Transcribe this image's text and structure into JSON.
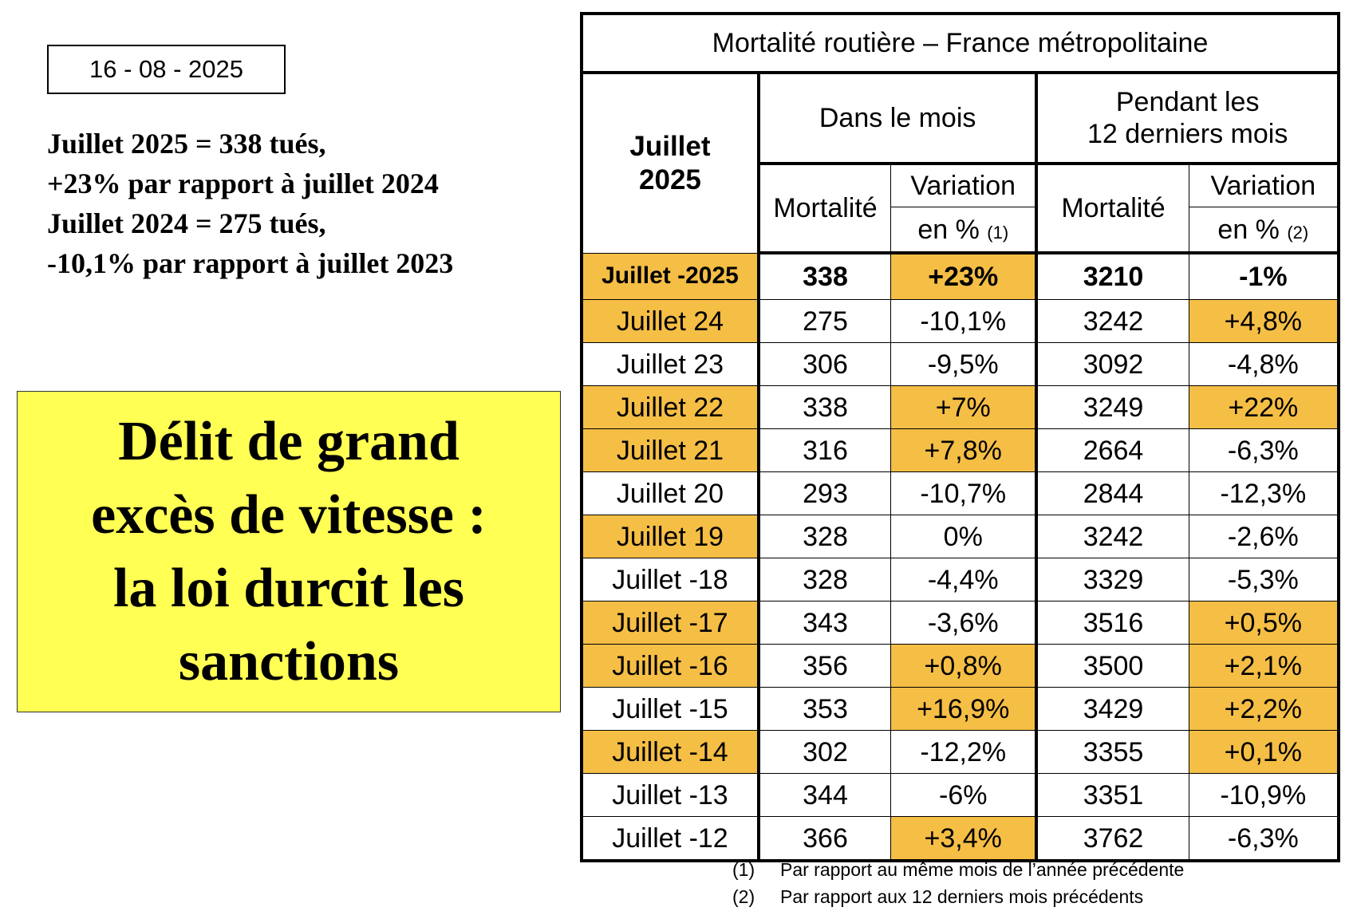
{
  "date": "16 - 08 - 2025",
  "summary": [
    "Juillet 2025 = 338 tués,",
    "+23% par rapport à juillet 2024",
    "Juillet 2024 = 275 tués,",
    "-10,1% par rapport à juillet 2023"
  ],
  "headline": [
    "Délit de grand",
    "excès de vitesse :",
    "la loi durcit les",
    "sanctions"
  ],
  "table": {
    "title": "Mortalité routière – France métropolitaine",
    "month_header": [
      "Juillet",
      "2025"
    ],
    "group_month": "Dans le mois",
    "group_12": [
      "Pendant les",
      "12 derniers mois"
    ],
    "col_mortalite": "Mortalité",
    "col_variation": "Variation",
    "col_en_pct": "en %",
    "note1": "(1)",
    "note2": "(2)",
    "highlight_color": "#f5be45",
    "rows": [
      {
        "month": "Juillet -2025",
        "mort": "338",
        "var": "+23%",
        "mort12": "3210",
        "var12": "-1%",
        "hl_month": true,
        "hl_var": true,
        "hl_var12": false
      },
      {
        "month": "Juillet 24",
        "mort": "275",
        "var": "-10,1%",
        "mort12": "3242",
        "var12": "+4,8%",
        "hl_month": true,
        "hl_var": false,
        "hl_var12": true
      },
      {
        "month": "Juillet 23",
        "mort": "306",
        "var": "-9,5%",
        "mort12": "3092",
        "var12": "-4,8%",
        "hl_month": false,
        "hl_var": false,
        "hl_var12": false
      },
      {
        "month": "Juillet 22",
        "mort": "338",
        "var": "+7%",
        "mort12": "3249",
        "var12": "+22%",
        "hl_month": true,
        "hl_var": true,
        "hl_var12": true
      },
      {
        "month": "Juillet 21",
        "mort": "316",
        "var": "+7,8%",
        "mort12": "2664",
        "var12": "-6,3%",
        "hl_month": true,
        "hl_var": true,
        "hl_var12": false
      },
      {
        "month": "Juillet 20",
        "mort": "293",
        "var": "-10,7%",
        "mort12": "2844",
        "var12": "-12,3%",
        "hl_month": false,
        "hl_var": false,
        "hl_var12": false
      },
      {
        "month": "Juillet 19",
        "mort": "328",
        "var": "0%",
        "mort12": "3242",
        "var12": "-2,6%",
        "hl_month": true,
        "hl_var": false,
        "hl_var12": false
      },
      {
        "month": "Juillet -18",
        "mort": "328",
        "var": "-4,4%",
        "mort12": "3329",
        "var12": "-5,3%",
        "hl_month": false,
        "hl_var": false,
        "hl_var12": false
      },
      {
        "month": "Juillet -17",
        "mort": "343",
        "var": "-3,6%",
        "mort12": "3516",
        "var12": "+0,5%",
        "hl_month": true,
        "hl_var": false,
        "hl_var12": true
      },
      {
        "month": "Juillet -16",
        "mort": "356",
        "var": "+0,8%",
        "mort12": "3500",
        "var12": "+2,1%",
        "hl_month": true,
        "hl_var": true,
        "hl_var12": true
      },
      {
        "month": "Juillet -15",
        "mort": "353",
        "var": "+16,9%",
        "mort12": "3429",
        "var12": "+2,2%",
        "hl_month": false,
        "hl_var": true,
        "hl_var12": true
      },
      {
        "month": "Juillet -14",
        "mort": "302",
        "var": "-12,2%",
        "mort12": "3355",
        "var12": "+0,1%",
        "hl_month": true,
        "hl_var": false,
        "hl_var12": true
      },
      {
        "month": "Juillet -13",
        "mort": "344",
        "var": "-6%",
        "mort12": "3351",
        "var12": "-10,9%",
        "hl_month": false,
        "hl_var": false,
        "hl_var12": false
      },
      {
        "month": "Juillet -12",
        "mort": "366",
        "var": "+3,4%",
        "mort12": "3762",
        "var12": "-6,3%",
        "hl_month": false,
        "hl_var": true,
        "hl_var12": false
      }
    ]
  },
  "footnotes": [
    {
      "num": "(1)",
      "text": "Par rapport au même mois de l’année précédente"
    },
    {
      "num": "(2)",
      "text": "Par rapport aux 12 derniers mois précédents"
    }
  ]
}
